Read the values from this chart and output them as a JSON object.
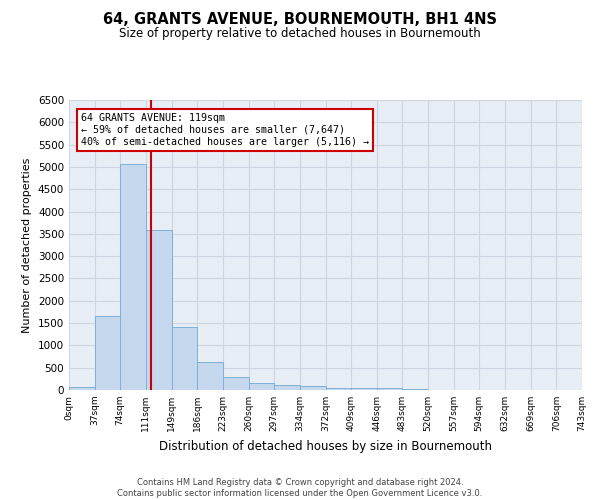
{
  "title": "64, GRANTS AVENUE, BOURNEMOUTH, BH1 4NS",
  "subtitle": "Size of property relative to detached houses in Bournemouth",
  "xlabel": "Distribution of detached houses by size in Bournemouth",
  "ylabel": "Number of detached properties",
  "footer_line1": "Contains HM Land Registry data © Crown copyright and database right 2024.",
  "footer_line2": "Contains public sector information licensed under the Open Government Licence v3.0.",
  "bar_edges": [
    0,
    37,
    74,
    111,
    149,
    186,
    223,
    260,
    297,
    334,
    372,
    409,
    446,
    483,
    520,
    557,
    594,
    632,
    669,
    706,
    743
  ],
  "bar_heights": [
    75,
    1650,
    5075,
    3590,
    1410,
    620,
    290,
    150,
    110,
    80,
    55,
    50,
    55,
    20,
    10,
    5,
    5,
    3,
    2,
    2
  ],
  "bar_color": "#c5d8ed",
  "bar_edge_color": "#7fb0d5",
  "vline_color": "#cc0000",
  "vline_x": 119,
  "annotation_line1": "64 GRANTS AVENUE: 119sqm",
  "annotation_line2": "← 59% of detached houses are smaller (7,647)",
  "annotation_line3": "40% of semi-detached houses are larger (5,116) →",
  "annotation_box_color": "#ffffff",
  "annotation_box_edge_color": "#cc0000",
  "ylim": [
    0,
    6500
  ],
  "xlim": [
    0,
    743
  ],
  "tick_labels": [
    "0sqm",
    "37sqm",
    "74sqm",
    "111sqm",
    "149sqm",
    "186sqm",
    "223sqm",
    "260sqm",
    "297sqm",
    "334sqm",
    "372sqm",
    "409sqm",
    "446sqm",
    "483sqm",
    "520sqm",
    "557sqm",
    "594sqm",
    "632sqm",
    "669sqm",
    "706sqm",
    "743sqm"
  ],
  "yticks": [
    0,
    500,
    1000,
    1500,
    2000,
    2500,
    3000,
    3500,
    4000,
    4500,
    5000,
    5500,
    6000,
    6500
  ],
  "grid_color": "#cdd5e3",
  "background_color": "#e8eef5"
}
